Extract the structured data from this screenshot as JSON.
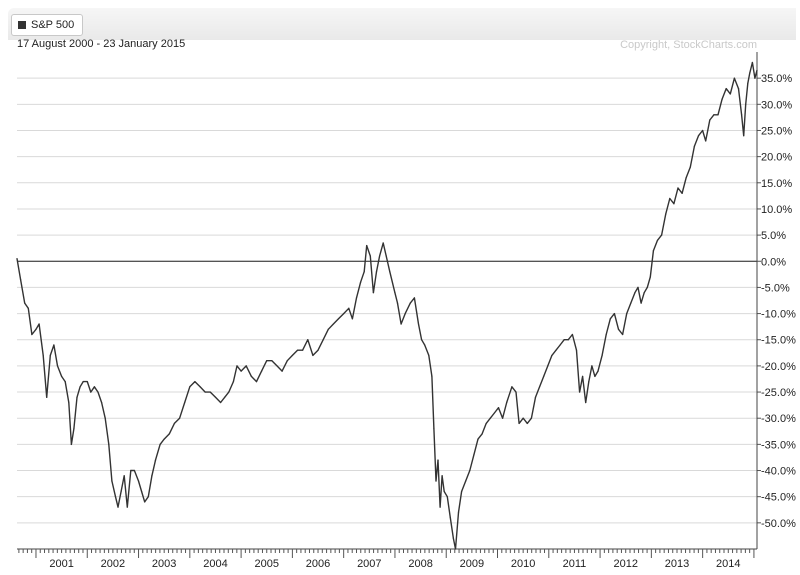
{
  "legend": {
    "label": "S&P 500",
    "swatch_color": "#333333"
  },
  "subtitle": "17 August 2000 - 23 January 2015",
  "credit": "Copyright, StockCharts.com",
  "chart_data": {
    "type": "line",
    "series": [
      {
        "name": "S&P 500",
        "color": "#333333",
        "points": [
          [
            2000.63,
            0.5
          ],
          [
            2000.7,
            -3.5
          ],
          [
            2000.78,
            -8
          ],
          [
            2000.85,
            -9
          ],
          [
            2000.92,
            -14
          ],
          [
            2001.0,
            -13
          ],
          [
            2001.06,
            -12
          ],
          [
            2001.14,
            -18
          ],
          [
            2001.21,
            -26
          ],
          [
            2001.28,
            -18
          ],
          [
            2001.35,
            -16
          ],
          [
            2001.42,
            -20
          ],
          [
            2001.5,
            -22
          ],
          [
            2001.57,
            -23
          ],
          [
            2001.64,
            -27
          ],
          [
            2001.69,
            -35
          ],
          [
            2001.74,
            -32
          ],
          [
            2001.8,
            -26
          ],
          [
            2001.86,
            -24
          ],
          [
            2001.92,
            -23
          ],
          [
            2002.0,
            -23
          ],
          [
            2002.07,
            -25
          ],
          [
            2002.14,
            -24
          ],
          [
            2002.21,
            -25
          ],
          [
            2002.28,
            -27
          ],
          [
            2002.35,
            -30
          ],
          [
            2002.42,
            -35
          ],
          [
            2002.48,
            -42
          ],
          [
            2002.55,
            -45
          ],
          [
            2002.6,
            -47
          ],
          [
            2002.66,
            -44
          ],
          [
            2002.72,
            -41
          ],
          [
            2002.78,
            -47
          ],
          [
            2002.85,
            -40
          ],
          [
            2002.92,
            -40
          ],
          [
            2003.0,
            -42
          ],
          [
            2003.06,
            -44
          ],
          [
            2003.12,
            -46
          ],
          [
            2003.19,
            -45
          ],
          [
            2003.26,
            -41
          ],
          [
            2003.33,
            -38
          ],
          [
            2003.42,
            -35
          ],
          [
            2003.5,
            -34
          ],
          [
            2003.6,
            -33
          ],
          [
            2003.7,
            -31
          ],
          [
            2003.8,
            -30
          ],
          [
            2003.9,
            -27
          ],
          [
            2004.0,
            -24
          ],
          [
            2004.1,
            -23
          ],
          [
            2004.2,
            -24
          ],
          [
            2004.3,
            -25
          ],
          [
            2004.4,
            -25
          ],
          [
            2004.5,
            -26
          ],
          [
            2004.6,
            -27
          ],
          [
            2004.68,
            -26
          ],
          [
            2004.76,
            -25
          ],
          [
            2004.85,
            -23
          ],
          [
            2004.92,
            -20
          ],
          [
            2005.0,
            -21
          ],
          [
            2005.1,
            -20
          ],
          [
            2005.2,
            -22
          ],
          [
            2005.3,
            -23
          ],
          [
            2005.4,
            -21
          ],
          [
            2005.5,
            -19
          ],
          [
            2005.6,
            -19
          ],
          [
            2005.7,
            -20
          ],
          [
            2005.8,
            -21
          ],
          [
            2005.9,
            -19
          ],
          [
            2006.0,
            -18
          ],
          [
            2006.1,
            -17
          ],
          [
            2006.2,
            -17
          ],
          [
            2006.3,
            -15
          ],
          [
            2006.4,
            -18
          ],
          [
            2006.5,
            -17
          ],
          [
            2006.6,
            -15
          ],
          [
            2006.7,
            -13
          ],
          [
            2006.8,
            -12
          ],
          [
            2006.9,
            -11
          ],
          [
            2007.0,
            -10
          ],
          [
            2007.1,
            -9
          ],
          [
            2007.17,
            -11
          ],
          [
            2007.25,
            -7
          ],
          [
            2007.33,
            -4
          ],
          [
            2007.4,
            -2
          ],
          [
            2007.45,
            3
          ],
          [
            2007.52,
            1
          ],
          [
            2007.58,
            -6
          ],
          [
            2007.64,
            -2
          ],
          [
            2007.7,
            1
          ],
          [
            2007.77,
            3.5
          ],
          [
            2007.83,
            1
          ],
          [
            2007.9,
            -2
          ],
          [
            2008.0,
            -6
          ],
          [
            2008.05,
            -8
          ],
          [
            2008.12,
            -12
          ],
          [
            2008.2,
            -10
          ],
          [
            2008.3,
            -8
          ],
          [
            2008.38,
            -7
          ],
          [
            2008.46,
            -12
          ],
          [
            2008.52,
            -15
          ],
          [
            2008.58,
            -16
          ],
          [
            2008.66,
            -18
          ],
          [
            2008.72,
            -22
          ],
          [
            2008.76,
            -32
          ],
          [
            2008.8,
            -42
          ],
          [
            2008.84,
            -38
          ],
          [
            2008.88,
            -47
          ],
          [
            2008.92,
            -41
          ],
          [
            2008.96,
            -44
          ],
          [
            2009.02,
            -45
          ],
          [
            2009.08,
            -49
          ],
          [
            2009.14,
            -53
          ],
          [
            2009.18,
            -55
          ],
          [
            2009.24,
            -48
          ],
          [
            2009.3,
            -44
          ],
          [
            2009.38,
            -42
          ],
          [
            2009.46,
            -40
          ],
          [
            2009.54,
            -37
          ],
          [
            2009.62,
            -34
          ],
          [
            2009.7,
            -33
          ],
          [
            2009.78,
            -31
          ],
          [
            2009.86,
            -30
          ],
          [
            2009.94,
            -29
          ],
          [
            2010.02,
            -28
          ],
          [
            2010.1,
            -30
          ],
          [
            2010.18,
            -27
          ],
          [
            2010.28,
            -24
          ],
          [
            2010.36,
            -25
          ],
          [
            2010.42,
            -31
          ],
          [
            2010.5,
            -30
          ],
          [
            2010.58,
            -31
          ],
          [
            2010.66,
            -30
          ],
          [
            2010.74,
            -26
          ],
          [
            2010.82,
            -24
          ],
          [
            2010.9,
            -22
          ],
          [
            2010.98,
            -20
          ],
          [
            2011.06,
            -18
          ],
          [
            2011.14,
            -17
          ],
          [
            2011.22,
            -16
          ],
          [
            2011.3,
            -15
          ],
          [
            2011.38,
            -15
          ],
          [
            2011.46,
            -14
          ],
          [
            2011.54,
            -17
          ],
          [
            2011.6,
            -25
          ],
          [
            2011.66,
            -22
          ],
          [
            2011.72,
            -27
          ],
          [
            2011.78,
            -23
          ],
          [
            2011.84,
            -20
          ],
          [
            2011.9,
            -22
          ],
          [
            2011.96,
            -21
          ],
          [
            2012.04,
            -18
          ],
          [
            2012.12,
            -14
          ],
          [
            2012.2,
            -11
          ],
          [
            2012.28,
            -10
          ],
          [
            2012.36,
            -13
          ],
          [
            2012.44,
            -14
          ],
          [
            2012.52,
            -10
          ],
          [
            2012.6,
            -8
          ],
          [
            2012.68,
            -6
          ],
          [
            2012.74,
            -5
          ],
          [
            2012.8,
            -8
          ],
          [
            2012.86,
            -6
          ],
          [
            2012.92,
            -5
          ],
          [
            2012.98,
            -3
          ],
          [
            2013.04,
            2
          ],
          [
            2013.12,
            4
          ],
          [
            2013.2,
            5
          ],
          [
            2013.28,
            9
          ],
          [
            2013.36,
            12
          ],
          [
            2013.44,
            11
          ],
          [
            2013.52,
            14
          ],
          [
            2013.6,
            13
          ],
          [
            2013.68,
            16
          ],
          [
            2013.76,
            18
          ],
          [
            2013.84,
            22
          ],
          [
            2013.92,
            24
          ],
          [
            2014.0,
            25
          ],
          [
            2014.06,
            23
          ],
          [
            2014.14,
            27
          ],
          [
            2014.22,
            28
          ],
          [
            2014.3,
            28
          ],
          [
            2014.38,
            31
          ],
          [
            2014.46,
            33
          ],
          [
            2014.54,
            32
          ],
          [
            2014.62,
            35
          ],
          [
            2014.7,
            33
          ],
          [
            2014.76,
            28
          ],
          [
            2014.8,
            24
          ],
          [
            2014.84,
            30
          ],
          [
            2014.88,
            34
          ],
          [
            2014.92,
            36
          ],
          [
            2014.97,
            38
          ],
          [
            2015.02,
            35
          ],
          [
            2015.06,
            36.5
          ]
        ]
      }
    ],
    "xaxis": {
      "range": [
        2000.63,
        2015.06
      ],
      "tick_labels": [
        "2001",
        "2002",
        "2003",
        "2004",
        "2005",
        "2006",
        "2007",
        "2008",
        "2009",
        "2010",
        "2011",
        "2012",
        "2013",
        "2014"
      ],
      "tick_values": [
        2001,
        2002,
        2003,
        2004,
        2005,
        2006,
        2007,
        2008,
        2009,
        2010,
        2011,
        2012,
        2013,
        2014
      ]
    },
    "yaxis": {
      "range": [
        -55,
        40
      ],
      "position": "right",
      "unit": "%",
      "tick_labels": [
        "35.0%",
        "30.0%",
        "25.0%",
        "20.0%",
        "15.0%",
        "10.0%",
        "5.0%",
        "0.0%",
        "-5.0%",
        "-10.0%",
        "-15.0%",
        "-20.0%",
        "-25.0%",
        "-30.0%",
        "-35.0%",
        "-40.0%",
        "-45.0%",
        "-50.0%"
      ],
      "tick_values": [
        35,
        30,
        25,
        20,
        15,
        10,
        5,
        0,
        -5,
        -10,
        -15,
        -20,
        -25,
        -30,
        -35,
        -40,
        -45,
        -50
      ]
    },
    "baseline": 0,
    "grid": true,
    "legend_position": "top-left"
  }
}
